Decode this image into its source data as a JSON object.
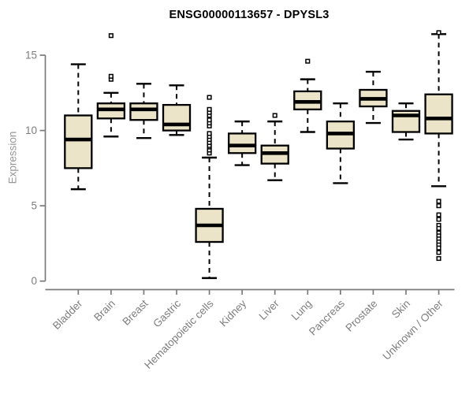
{
  "chart_data": {
    "type": "boxplot",
    "title": "ENSG00000113657 - DPYSL3",
    "ylabel": "Expression",
    "xlabel": "",
    "ylim": [
      0,
      16.8
    ],
    "yticks": [
      0,
      5,
      10,
      15
    ],
    "grid": false,
    "legend": "none",
    "categories": [
      "Bladder",
      "Brain",
      "Breast",
      "Gastric",
      "Hematopoietic cells",
      "Kidney",
      "Liver",
      "Lung",
      "Pancreas",
      "Prostate",
      "Skin",
      "Unknown / Other"
    ],
    "series": [
      {
        "category": "Bladder",
        "whisker_low": 6.1,
        "q1": 7.5,
        "median": 9.4,
        "q3": 11.0,
        "whisker_high": 14.4,
        "outliers": []
      },
      {
        "category": "Brain",
        "whisker_low": 9.6,
        "q1": 10.8,
        "median": 11.4,
        "q3": 11.8,
        "whisker_high": 12.5,
        "outliers": [
          13.4,
          13.6,
          16.3
        ]
      },
      {
        "category": "Breast",
        "whisker_low": 9.5,
        "q1": 10.7,
        "median": 11.4,
        "q3": 11.8,
        "whisker_high": 13.1,
        "outliers": []
      },
      {
        "category": "Gastric",
        "whisker_low": 9.7,
        "q1": 10.0,
        "median": 10.4,
        "q3": 11.7,
        "whisker_high": 13.0,
        "outliers": []
      },
      {
        "category": "Hematopoietic cells",
        "whisker_low": 0.2,
        "q1": 2.6,
        "median": 3.7,
        "q3": 4.8,
        "whisker_high": 8.2,
        "outliers": [
          8.5,
          8.7,
          8.9,
          9.0,
          9.2,
          9.4,
          9.6,
          9.8,
          10.3,
          10.5,
          10.7,
          11.0,
          11.2,
          11.4,
          12.2
        ]
      },
      {
        "category": "Kidney",
        "whisker_low": 7.7,
        "q1": 8.5,
        "median": 9.0,
        "q3": 9.8,
        "whisker_high": 10.6,
        "outliers": []
      },
      {
        "category": "Liver",
        "whisker_low": 6.7,
        "q1": 7.8,
        "median": 8.5,
        "q3": 9.0,
        "whisker_high": 10.6,
        "outliers": [
          11.0
        ]
      },
      {
        "category": "Lung",
        "whisker_low": 9.9,
        "q1": 11.4,
        "median": 11.9,
        "q3": 12.6,
        "whisker_high": 13.4,
        "outliers": [
          14.6
        ]
      },
      {
        "category": "Pancreas",
        "whisker_low": 6.5,
        "q1": 8.8,
        "median": 9.8,
        "q3": 10.6,
        "whisker_high": 11.8,
        "outliers": []
      },
      {
        "category": "Prostate",
        "whisker_low": 10.5,
        "q1": 11.6,
        "median": 12.1,
        "q3": 12.7,
        "whisker_high": 13.9,
        "outliers": []
      },
      {
        "category": "Skin",
        "whisker_low": 9.4,
        "q1": 9.9,
        "median": 11.0,
        "q3": 11.3,
        "whisker_high": 11.8,
        "outliers": []
      },
      {
        "category": "Unknown / Other",
        "whisker_low": 6.3,
        "q1": 9.8,
        "median": 10.8,
        "q3": 12.4,
        "whisker_high": 16.4,
        "outliers": [
          16.5,
          5.3,
          5.0,
          4.4,
          4.1,
          3.7,
          3.5,
          3.2,
          3.0,
          2.8,
          2.6,
          2.4,
          2.2,
          1.9,
          1.5
        ]
      }
    ],
    "colors": {
      "box_fill": "#EBE4C8",
      "box_border": "#000000",
      "median": "#000000",
      "whisker": "#000000",
      "outlier": "#000000",
      "axis": "#7b7b7b",
      "tick_label": "#7e7e7e",
      "axis_label": "#989898",
      "title": "#000000",
      "background": "#ffffff"
    }
  }
}
